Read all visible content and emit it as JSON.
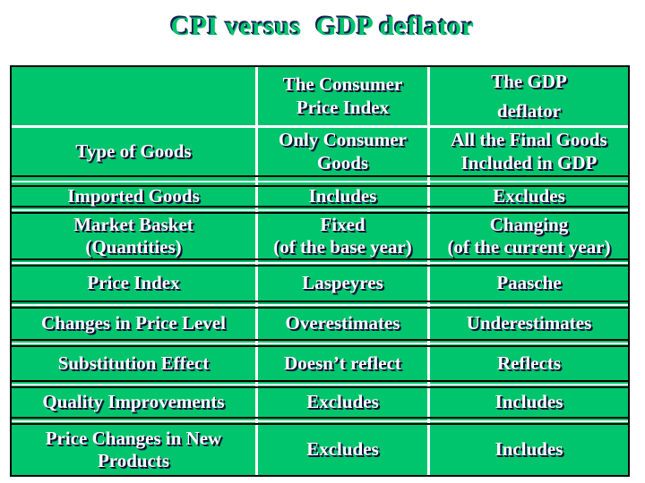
{
  "slide": {
    "title": "CPI versus  GDP deflator",
    "colors": {
      "table_green": "#00c56c",
      "text_white": "#ffffff",
      "shadow_navy": "#0e0e38",
      "title_green": "#00c56c",
      "title_shadow": "#1d1d58",
      "border_black": "#000000",
      "gridline_white": "#ffffff"
    },
    "table": {
      "header": {
        "col1": "",
        "col2": "The Consumer\nPrice Index",
        "col3": "The GDP\ndeflator"
      },
      "rows": [
        {
          "label": "Type of Goods",
          "cpi": "Only Consumer\nGoods",
          "gdp": "All the Final Goods\nIncluded in GDP"
        },
        {
          "label": "Imported Goods",
          "cpi": "Includes",
          "gdp": "Excludes"
        },
        {
          "label": "Market Basket\n(Quantities)",
          "cpi": "Fixed\n(of the base year)",
          "gdp": "Changing\n(of the current year)"
        },
        {
          "label": "Price Index",
          "cpi": "Laspeyres",
          "gdp": "Paasche"
        },
        {
          "label": "Changes in Price Level",
          "cpi": "Overestimates",
          "gdp": "Underestimates"
        },
        {
          "label": "Substitution Effect",
          "cpi": "Doesn’t reflect",
          "gdp": "Reflects"
        },
        {
          "label": "Quality Improvements",
          "cpi": "Excludes",
          "gdp": "Includes"
        },
        {
          "label": "Price Changes in New\nProducts",
          "cpi": "Excludes",
          "gdp": "Includes"
        }
      ]
    }
  }
}
